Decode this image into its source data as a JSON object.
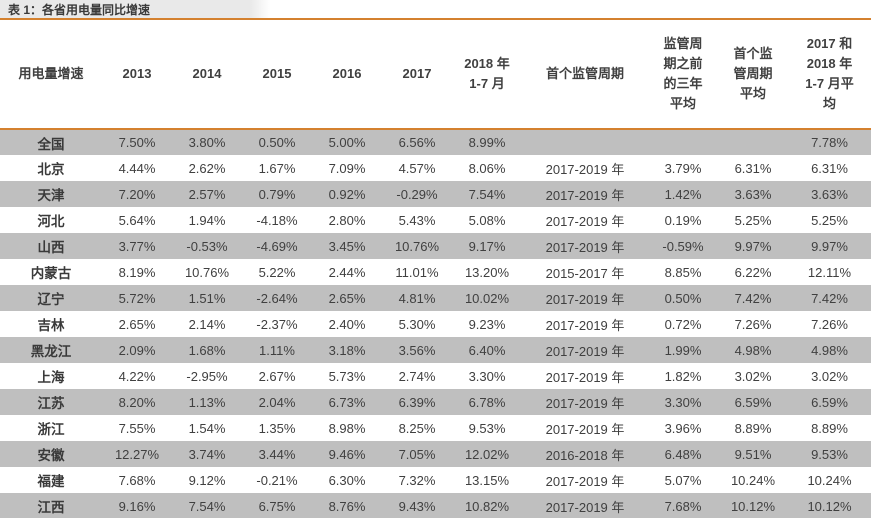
{
  "title": "表 1：各省用电量同比增速",
  "colors": {
    "accent": "#D4812F",
    "stripe": "#BFBFBF",
    "title_bg": "#E9E9E9",
    "text": "#404040"
  },
  "table": {
    "columns": [
      "用电量增速",
      "2013",
      "2014",
      "2015",
      "2016",
      "2017",
      "2018 年\n1-7 月",
      "首个监管周期",
      "监管周\n期之前\n的三年\n平均",
      "首个监\n管周期\n平均",
      "2017 和\n2018 年\n1-7 月平\n均"
    ],
    "rows": [
      {
        "label": "全国",
        "values": [
          "7.50%",
          "3.80%",
          "0.50%",
          "5.00%",
          "6.56%",
          "8.99%",
          "",
          "",
          "",
          "7.78%"
        ]
      },
      {
        "label": "北京",
        "values": [
          "4.44%",
          "2.62%",
          "1.67%",
          "7.09%",
          "4.57%",
          "8.06%",
          "2017-2019 年",
          "3.79%",
          "6.31%",
          "6.31%"
        ]
      },
      {
        "label": "天津",
        "values": [
          "7.20%",
          "2.57%",
          "0.79%",
          "0.92%",
          "-0.29%",
          "7.54%",
          "2017-2019 年",
          "1.42%",
          "3.63%",
          "3.63%"
        ]
      },
      {
        "label": "河北",
        "values": [
          "5.64%",
          "1.94%",
          "-4.18%",
          "2.80%",
          "5.43%",
          "5.08%",
          "2017-2019 年",
          "0.19%",
          "5.25%",
          "5.25%"
        ]
      },
      {
        "label": "山西",
        "values": [
          "3.77%",
          "-0.53%",
          "-4.69%",
          "3.45%",
          "10.76%",
          "9.17%",
          "2017-2019 年",
          "-0.59%",
          "9.97%",
          "9.97%"
        ]
      },
      {
        "label": "内蒙古",
        "values": [
          "8.19%",
          "10.76%",
          "5.22%",
          "2.44%",
          "11.01%",
          "13.20%",
          "2015-2017 年",
          "8.85%",
          "6.22%",
          "12.11%"
        ]
      },
      {
        "label": "辽宁",
        "values": [
          "5.72%",
          "1.51%",
          "-2.64%",
          "2.65%",
          "4.81%",
          "10.02%",
          "2017-2019 年",
          "0.50%",
          "7.42%",
          "7.42%"
        ]
      },
      {
        "label": "吉林",
        "values": [
          "2.65%",
          "2.14%",
          "-2.37%",
          "2.40%",
          "5.30%",
          "9.23%",
          "2017-2019 年",
          "0.72%",
          "7.26%",
          "7.26%"
        ]
      },
      {
        "label": "黑龙江",
        "values": [
          "2.09%",
          "1.68%",
          "1.11%",
          "3.18%",
          "3.56%",
          "6.40%",
          "2017-2019 年",
          "1.99%",
          "4.98%",
          "4.98%"
        ]
      },
      {
        "label": "上海",
        "values": [
          "4.22%",
          "-2.95%",
          "2.67%",
          "5.73%",
          "2.74%",
          "3.30%",
          "2017-2019 年",
          "1.82%",
          "3.02%",
          "3.02%"
        ]
      },
      {
        "label": "江苏",
        "values": [
          "8.20%",
          "1.13%",
          "2.04%",
          "6.73%",
          "6.39%",
          "6.78%",
          "2017-2019 年",
          "3.30%",
          "6.59%",
          "6.59%"
        ]
      },
      {
        "label": "浙江",
        "values": [
          "7.55%",
          "1.54%",
          "1.35%",
          "8.98%",
          "8.25%",
          "9.53%",
          "2017-2019 年",
          "3.96%",
          "8.89%",
          "8.89%"
        ]
      },
      {
        "label": "安徽",
        "values": [
          "12.27%",
          "3.74%",
          "3.44%",
          "9.46%",
          "7.05%",
          "12.02%",
          "2016-2018 年",
          "6.48%",
          "9.51%",
          "9.53%"
        ]
      },
      {
        "label": "福建",
        "values": [
          "7.68%",
          "9.12%",
          "-0.21%",
          "6.30%",
          "7.32%",
          "13.15%",
          "2017-2019 年",
          "5.07%",
          "10.24%",
          "10.24%"
        ]
      },
      {
        "label": "江西",
        "values": [
          "9.16%",
          "7.54%",
          "6.75%",
          "8.76%",
          "9.43%",
          "10.82%",
          "2017-2019 年",
          "7.68%",
          "10.12%",
          "10.12%"
        ]
      }
    ]
  }
}
